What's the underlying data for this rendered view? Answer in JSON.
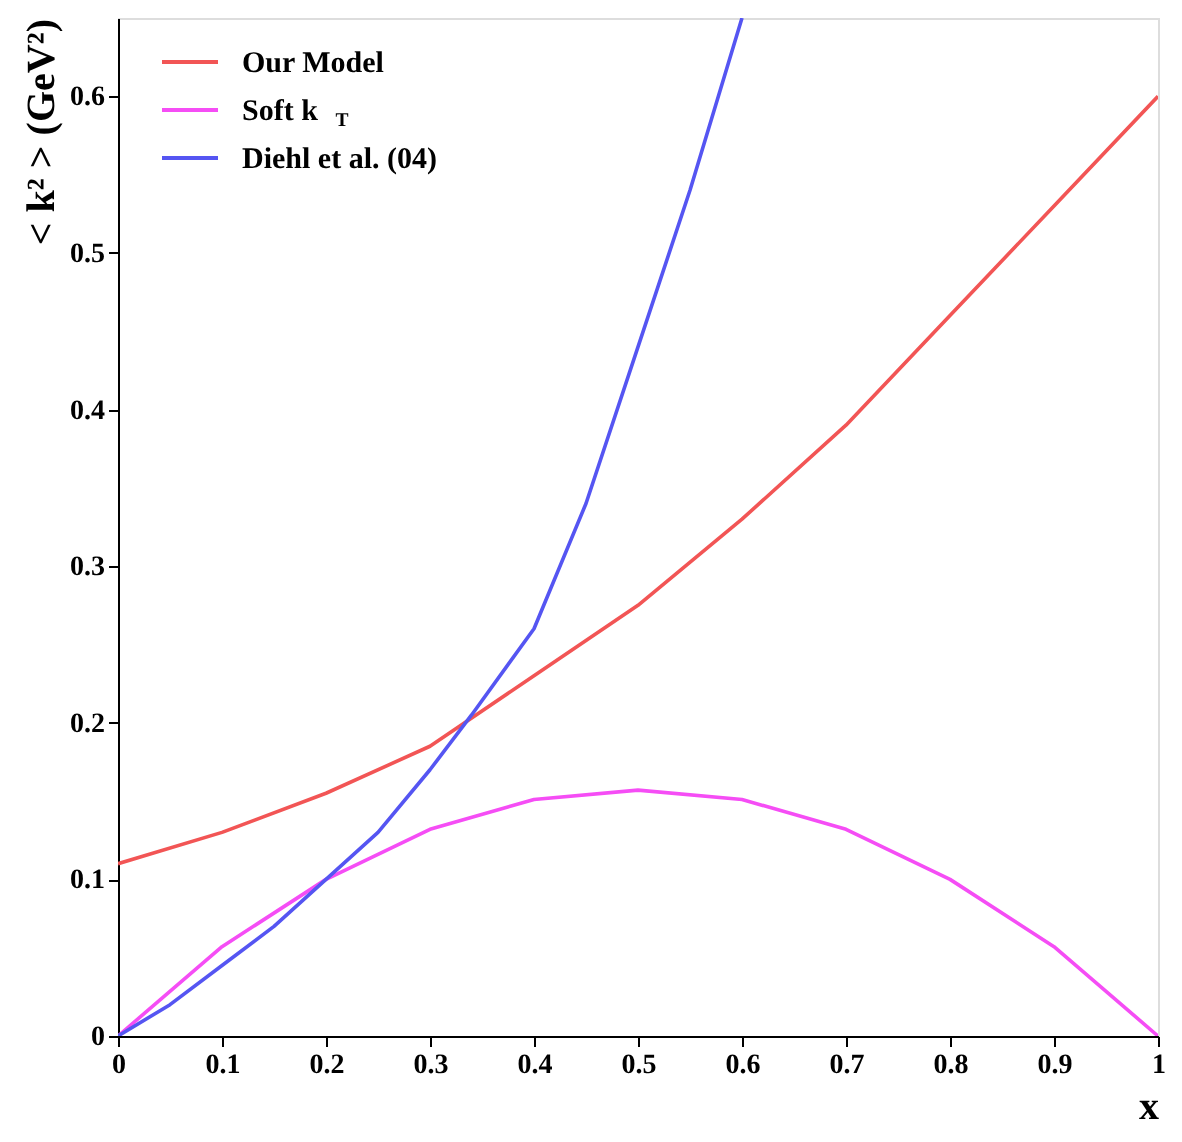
{
  "chart_data": {
    "type": "line",
    "xlabel": "x",
    "ylabel": "< k² > (GeV²)",
    "xlim": [
      0,
      1
    ],
    "ylim": [
      0,
      0.65
    ],
    "xticks": [
      0,
      0.1,
      0.2,
      0.3,
      0.4,
      0.5,
      0.6,
      0.7,
      0.8,
      0.9,
      1
    ],
    "yticks": [
      0,
      0.1,
      0.2,
      0.3,
      0.4,
      0.5,
      0.6
    ],
    "grid": false,
    "legend": "top left",
    "marker": "none",
    "line_style": "solid",
    "series": [
      {
        "name": "Our Model",
        "color": "#f25555",
        "x": [
          0,
          0.1,
          0.2,
          0.3,
          0.4,
          0.5,
          0.6,
          0.7,
          0.8,
          0.9,
          1
        ],
        "values": [
          0.11,
          0.13,
          0.155,
          0.185,
          0.23,
          0.275,
          0.33,
          0.39,
          0.46,
          0.53,
          0.6
        ]
      },
      {
        "name": "Soft k$_{T}$",
        "color": "#f54df5",
        "x": [
          0,
          0.1,
          0.2,
          0.3,
          0.4,
          0.5,
          0.6,
          0.7,
          0.8,
          0.9,
          1
        ],
        "values": [
          0,
          0.057,
          0.1,
          0.132,
          0.151,
          0.157,
          0.151,
          0.132,
          0.1,
          0.057,
          0
        ]
      },
      {
        "name": "Diehl et al. (04)",
        "color": "#5555f2",
        "x": [
          0,
          0.05,
          0.1,
          0.15,
          0.2,
          0.25,
          0.3,
          0.34,
          0.4,
          0.45,
          0.5,
          0.55,
          0.6
        ],
        "values": [
          0,
          0.02,
          0.045,
          0.07,
          0.1,
          0.13,
          0.17,
          0.205,
          0.26,
          0.34,
          0.44,
          0.54,
          0.65
        ]
      }
    ]
  }
}
